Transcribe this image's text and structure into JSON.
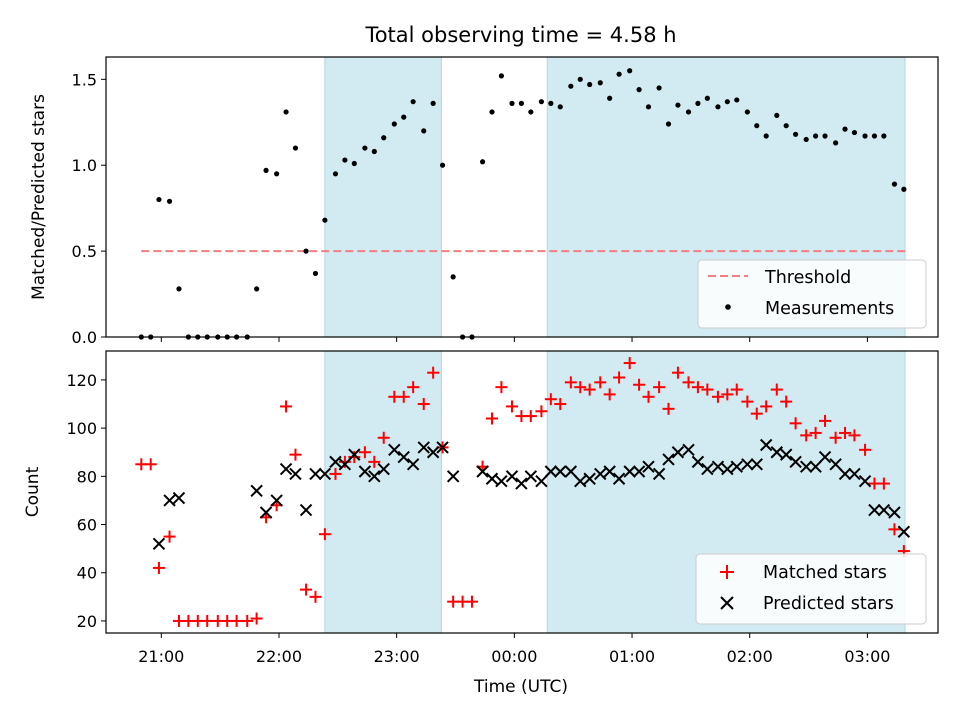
{
  "chart_data": {
    "title": "Total observing time = 4.58 h",
    "xlabel": "Time (UTC)",
    "x_ticks": [
      "21:00",
      "22:00",
      "23:00",
      "00:00",
      "01:00",
      "02:00",
      "03:00"
    ],
    "x_tick_hours": [
      21,
      22,
      23,
      24,
      25,
      26,
      27
    ],
    "x_range_hours": [
      20.53,
      27.6
    ],
    "shaded_intervals_hours": [
      [
        22.39,
        23.38
      ],
      [
        24.28,
        27.32
      ]
    ],
    "shade_color": "#add8e6",
    "panels": [
      {
        "type": "scatter",
        "ylabel": "Matched/Predicted stars",
        "ylim": [
          0,
          1.63
        ],
        "yticks": [
          0.0,
          0.5,
          1.0,
          1.5
        ],
        "ytick_labels": [
          "0.0",
          "0.5",
          "1.0",
          "1.5"
        ],
        "legend_position": "lower-right",
        "threshold": {
          "name": "Threshold",
          "y": 0.5,
          "x_range": [
            20.83,
            27.32
          ],
          "color": "#f08080",
          "style": "dashed"
        },
        "series": [
          {
            "name": "Measurements",
            "marker": "dot",
            "color": "#000000",
            "points": [
              [
                20.83,
                0
              ],
              [
                20.91,
                0
              ],
              [
                20.98,
                0.8
              ],
              [
                21.07,
                0.79
              ],
              [
                21.15,
                0.28
              ],
              [
                21.23,
                0
              ],
              [
                21.31,
                0
              ],
              [
                21.39,
                0
              ],
              [
                21.48,
                0
              ],
              [
                21.56,
                0
              ],
              [
                21.64,
                0
              ],
              [
                21.73,
                0
              ],
              [
                21.81,
                0.28
              ],
              [
                21.89,
                0.97
              ],
              [
                21.98,
                0.95
              ],
              [
                22.06,
                1.31
              ],
              [
                22.14,
                1.1
              ],
              [
                22.23,
                0.5
              ],
              [
                22.31,
                0.37
              ],
              [
                22.39,
                0.68
              ],
              [
                22.48,
                0.95
              ],
              [
                22.56,
                1.03
              ],
              [
                22.64,
                1.01
              ],
              [
                22.73,
                1.1
              ],
              [
                22.81,
                1.08
              ],
              [
                22.89,
                1.16
              ],
              [
                22.98,
                1.24
              ],
              [
                23.06,
                1.28
              ],
              [
                23.14,
                1.37
              ],
              [
                23.23,
                1.2
              ],
              [
                23.31,
                1.36
              ],
              [
                23.39,
                1.0
              ],
              [
                23.48,
                0.35
              ],
              [
                23.56,
                0
              ],
              [
                23.64,
                0
              ],
              [
                23.73,
                1.02
              ],
              [
                23.81,
                1.31
              ],
              [
                23.89,
                1.52
              ],
              [
                23.98,
                1.36
              ],
              [
                24.06,
                1.36
              ],
              [
                24.14,
                1.31
              ],
              [
                24.23,
                1.37
              ],
              [
                24.31,
                1.36
              ],
              [
                24.39,
                1.34
              ],
              [
                24.48,
                1.46
              ],
              [
                24.56,
                1.5
              ],
              [
                24.64,
                1.47
              ],
              [
                24.73,
                1.48
              ],
              [
                24.81,
                1.39
              ],
              [
                24.89,
                1.53
              ],
              [
                24.98,
                1.55
              ],
              [
                25.06,
                1.44
              ],
              [
                25.14,
                1.34
              ],
              [
                25.23,
                1.45
              ],
              [
                25.31,
                1.24
              ],
              [
                25.39,
                1.35
              ],
              [
                25.48,
                1.31
              ],
              [
                25.56,
                1.36
              ],
              [
                25.64,
                1.39
              ],
              [
                25.73,
                1.34
              ],
              [
                25.81,
                1.37
              ],
              [
                25.89,
                1.38
              ],
              [
                25.98,
                1.31
              ],
              [
                26.06,
                1.23
              ],
              [
                26.14,
                1.17
              ],
              [
                26.23,
                1.29
              ],
              [
                26.31,
                1.23
              ],
              [
                26.39,
                1.18
              ],
              [
                26.48,
                1.15
              ],
              [
                26.56,
                1.17
              ],
              [
                26.64,
                1.17
              ],
              [
                26.73,
                1.13
              ],
              [
                26.81,
                1.21
              ],
              [
                26.89,
                1.19
              ],
              [
                26.98,
                1.17
              ],
              [
                27.06,
                1.17
              ],
              [
                27.14,
                1.17
              ],
              [
                27.23,
                0.89
              ],
              [
                27.31,
                0.86
              ]
            ]
          }
        ]
      },
      {
        "type": "scatter",
        "ylabel": "Count",
        "ylim": [
          15,
          132
        ],
        "yticks": [
          20,
          40,
          60,
          80,
          100,
          120
        ],
        "ytick_labels": [
          "20",
          "40",
          "60",
          "80",
          "100",
          "120"
        ],
        "legend_position": "lower-right",
        "series": [
          {
            "name": "Matched stars",
            "marker": "plus",
            "color": "#ff0000",
            "points": [
              [
                20.83,
                85
              ],
              [
                20.91,
                85
              ],
              [
                20.98,
                42
              ],
              [
                21.07,
                55
              ],
              [
                21.15,
                20
              ],
              [
                21.23,
                20
              ],
              [
                21.31,
                20
              ],
              [
                21.39,
                20
              ],
              [
                21.48,
                20
              ],
              [
                21.56,
                20
              ],
              [
                21.64,
                20
              ],
              [
                21.73,
                20
              ],
              [
                21.81,
                21
              ],
              [
                21.89,
                63
              ],
              [
                21.98,
                68
              ],
              [
                22.06,
                109
              ],
              [
                22.14,
                89
              ],
              [
                22.23,
                33
              ],
              [
                22.31,
                30
              ],
              [
                22.39,
                56
              ],
              [
                22.48,
                81
              ],
              [
                22.56,
                86
              ],
              [
                22.64,
                88
              ],
              [
                22.73,
                90
              ],
              [
                22.81,
                86
              ],
              [
                22.89,
                96
              ],
              [
                22.98,
                113
              ],
              [
                23.06,
                113
              ],
              [
                23.14,
                117
              ],
              [
                23.23,
                110
              ],
              [
                23.31,
                123
              ],
              [
                23.39,
                92
              ],
              [
                23.48,
                28
              ],
              [
                23.56,
                28
              ],
              [
                23.64,
                28
              ],
              [
                23.73,
                84
              ],
              [
                23.81,
                104
              ],
              [
                23.89,
                117
              ],
              [
                23.98,
                109
              ],
              [
                24.06,
                105
              ],
              [
                24.14,
                105
              ],
              [
                24.23,
                107
              ],
              [
                24.31,
                112
              ],
              [
                24.39,
                110
              ],
              [
                24.48,
                119
              ],
              [
                24.56,
                117
              ],
              [
                24.64,
                116
              ],
              [
                24.73,
                119
              ],
              [
                24.81,
                114
              ],
              [
                24.89,
                121
              ],
              [
                24.98,
                127
              ],
              [
                25.06,
                118
              ],
              [
                25.14,
                113
              ],
              [
                25.23,
                117
              ],
              [
                25.31,
                108
              ],
              [
                25.39,
                123
              ],
              [
                25.48,
                119
              ],
              [
                25.56,
                117
              ],
              [
                25.64,
                116
              ],
              [
                25.73,
                113
              ],
              [
                25.81,
                114
              ],
              [
                25.89,
                116
              ],
              [
                25.98,
                111
              ],
              [
                26.06,
                106
              ],
              [
                26.14,
                109
              ],
              [
                26.23,
                116
              ],
              [
                26.31,
                111
              ],
              [
                26.39,
                102
              ],
              [
                26.48,
                97
              ],
              [
                26.56,
                98
              ],
              [
                26.64,
                103
              ],
              [
                26.73,
                96
              ],
              [
                26.81,
                98
              ],
              [
                26.89,
                97
              ],
              [
                26.98,
                91
              ],
              [
                27.06,
                77
              ],
              [
                27.14,
                77
              ],
              [
                27.23,
                58
              ],
              [
                27.31,
                49
              ]
            ]
          },
          {
            "name": "Predicted stars",
            "marker": "x",
            "color": "#000000",
            "points": [
              [
                20.98,
                52
              ],
              [
                21.07,
                70
              ],
              [
                21.15,
                71
              ],
              [
                21.81,
                74
              ],
              [
                21.89,
                65
              ],
              [
                21.98,
                70
              ],
              [
                22.06,
                83
              ],
              [
                22.14,
                81
              ],
              [
                22.23,
                66
              ],
              [
                22.31,
                81
              ],
              [
                22.39,
                81
              ],
              [
                22.48,
                86
              ],
              [
                22.56,
                85
              ],
              [
                22.64,
                89
              ],
              [
                22.73,
                82
              ],
              [
                22.81,
                80
              ],
              [
                22.89,
                83
              ],
              [
                22.98,
                91
              ],
              [
                23.06,
                88
              ],
              [
                23.14,
                85
              ],
              [
                23.23,
                92
              ],
              [
                23.31,
                90
              ],
              [
                23.39,
                92
              ],
              [
                23.48,
                80
              ],
              [
                23.73,
                82
              ],
              [
                23.81,
                79
              ],
              [
                23.89,
                78
              ],
              [
                23.98,
                80
              ],
              [
                24.06,
                77
              ],
              [
                24.14,
                80
              ],
              [
                24.23,
                78
              ],
              [
                24.31,
                82
              ],
              [
                24.39,
                82
              ],
              [
                24.48,
                82
              ],
              [
                24.56,
                78
              ],
              [
                24.64,
                79
              ],
              [
                24.73,
                81
              ],
              [
                24.81,
                82
              ],
              [
                24.89,
                79
              ],
              [
                24.98,
                82
              ],
              [
                25.06,
                82
              ],
              [
                25.14,
                84
              ],
              [
                25.23,
                81
              ],
              [
                25.31,
                87
              ],
              [
                25.39,
                90
              ],
              [
                25.48,
                91
              ],
              [
                25.56,
                86
              ],
              [
                25.64,
                83
              ],
              [
                25.73,
                84
              ],
              [
                25.81,
                83
              ],
              [
                25.89,
                84
              ],
              [
                25.98,
                85
              ],
              [
                26.06,
                85
              ],
              [
                26.14,
                93
              ],
              [
                26.23,
                90
              ],
              [
                26.31,
                89
              ],
              [
                26.39,
                86
              ],
              [
                26.48,
                84
              ],
              [
                26.56,
                84
              ],
              [
                26.64,
                88
              ],
              [
                26.73,
                85
              ],
              [
                26.81,
                81
              ],
              [
                26.89,
                81
              ],
              [
                26.98,
                78
              ],
              [
                27.06,
                66
              ],
              [
                27.14,
                66
              ],
              [
                27.23,
                65
              ],
              [
                27.31,
                57
              ]
            ]
          }
        ]
      }
    ]
  }
}
